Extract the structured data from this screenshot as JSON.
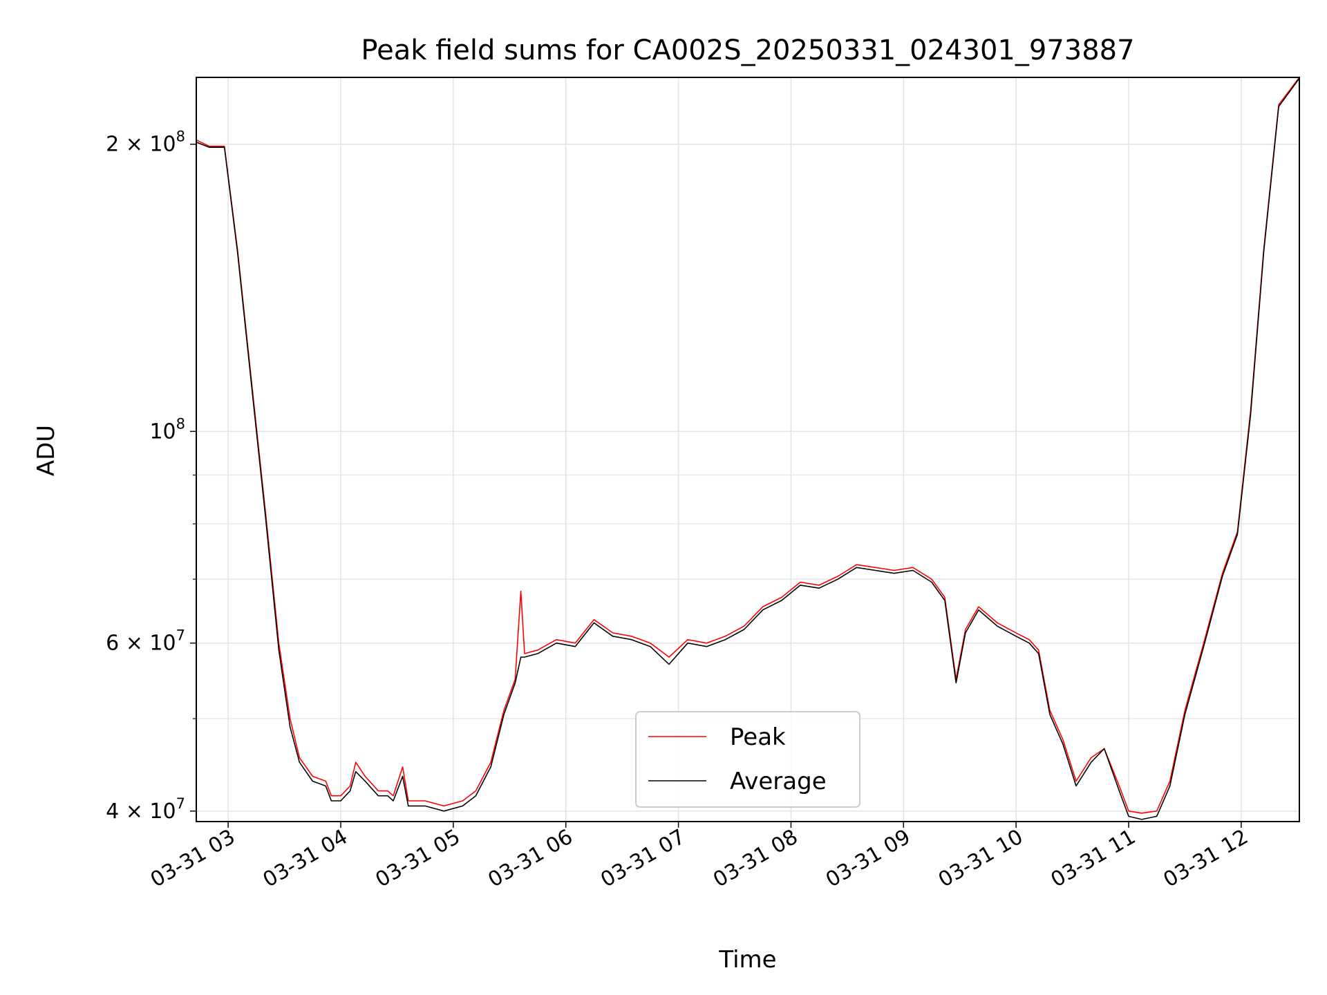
{
  "chart_data": {
    "type": "line",
    "title": "Peak field sums for CA002S_20250331_024301_973887",
    "xlabel": "Time",
    "ylabel": "ADU",
    "y_scale": "log",
    "xlim": [
      "03-31 02:43",
      "03-31 12:31"
    ],
    "ylim": [
      39000000,
      235000000
    ],
    "grid": true,
    "legend_position": "bottom-center",
    "x_ticks": [
      "03-31 03",
      "03-31 04",
      "03-31 05",
      "03-31 06",
      "03-31 07",
      "03-31 08",
      "03-31 09",
      "03-31 10",
      "03-31 11",
      "03-31 12"
    ],
    "y_major_ticks": [
      {
        "value": 40000000,
        "mantissa": "4",
        "exponent": "7"
      },
      {
        "value": 60000000,
        "mantissa": "6",
        "exponent": "7"
      },
      {
        "value": 100000000,
        "mantissa": "",
        "exponent": "8"
      },
      {
        "value": 200000000,
        "mantissa": "2",
        "exponent": "8"
      }
    ],
    "y_minor_ticks": [
      50000000,
      70000000,
      80000000,
      90000000
    ],
    "series": [
      {
        "name": "Peak",
        "color": "#ff0000",
        "points": [
          [
            "03-31 02:43",
            202000000
          ],
          [
            "03-31 02:50",
            199000000
          ],
          [
            "03-31 02:58",
            199000000
          ],
          [
            "03-31 03:05",
            155000000
          ],
          [
            "03-31 03:12",
            115000000
          ],
          [
            "03-31 03:20",
            82000000
          ],
          [
            "03-31 03:27",
            60000000
          ],
          [
            "03-31 03:33",
            50000000
          ],
          [
            "03-31 03:38",
            45500000
          ],
          [
            "03-31 03:45",
            43500000
          ],
          [
            "03-31 03:52",
            43000000
          ],
          [
            "03-31 03:55",
            41500000
          ],
          [
            "03-31 04:00",
            41500000
          ],
          [
            "03-31 04:05",
            42500000
          ],
          [
            "03-31 04:08",
            45000000
          ],
          [
            "03-31 04:13",
            43500000
          ],
          [
            "03-31 04:20",
            42000000
          ],
          [
            "03-31 04:25",
            42000000
          ],
          [
            "03-31 04:28",
            41500000
          ],
          [
            "03-31 04:33",
            44500000
          ],
          [
            "03-31 04:36",
            41000000
          ],
          [
            "03-31 04:45",
            41000000
          ],
          [
            "03-31 04:55",
            40500000
          ],
          [
            "03-31 05:05",
            41000000
          ],
          [
            "03-31 05:12",
            42000000
          ],
          [
            "03-31 05:20",
            45000000
          ],
          [
            "03-31 05:27",
            51000000
          ],
          [
            "03-31 05:33",
            55000000
          ],
          [
            "03-31 05:36",
            68000000
          ],
          [
            "03-31 05:38",
            58500000
          ],
          [
            "03-31 05:45",
            59000000
          ],
          [
            "03-31 05:55",
            60500000
          ],
          [
            "03-31 06:05",
            60000000
          ],
          [
            "03-31 06:15",
            63500000
          ],
          [
            "03-31 06:25",
            61500000
          ],
          [
            "03-31 06:35",
            61000000
          ],
          [
            "03-31 06:45",
            60000000
          ],
          [
            "03-31 06:55",
            58000000
          ],
          [
            "03-31 07:05",
            60500000
          ],
          [
            "03-31 07:15",
            60000000
          ],
          [
            "03-31 07:25",
            61000000
          ],
          [
            "03-31 07:35",
            62500000
          ],
          [
            "03-31 07:45",
            65500000
          ],
          [
            "03-31 07:55",
            67000000
          ],
          [
            "03-31 08:05",
            69500000
          ],
          [
            "03-31 08:15",
            69000000
          ],
          [
            "03-31 08:25",
            70500000
          ],
          [
            "03-31 08:35",
            72500000
          ],
          [
            "03-31 08:45",
            72000000
          ],
          [
            "03-31 08:55",
            71500000
          ],
          [
            "03-31 09:05",
            72000000
          ],
          [
            "03-31 09:15",
            70000000
          ],
          [
            "03-31 09:22",
            67000000
          ],
          [
            "03-31 09:28",
            55000000
          ],
          [
            "03-31 09:33",
            62000000
          ],
          [
            "03-31 09:40",
            65500000
          ],
          [
            "03-31 09:50",
            63000000
          ],
          [
            "03-31 10:00",
            61500000
          ],
          [
            "03-31 10:07",
            60500000
          ],
          [
            "03-31 10:12",
            59000000
          ],
          [
            "03-31 10:18",
            51000000
          ],
          [
            "03-31 10:25",
            47500000
          ],
          [
            "03-31 10:32",
            43000000
          ],
          [
            "03-31 10:40",
            45500000
          ],
          [
            "03-31 10:47",
            46500000
          ],
          [
            "03-31 10:55",
            42500000
          ],
          [
            "03-31 11:00",
            40000000
          ],
          [
            "03-31 11:07",
            39800000
          ],
          [
            "03-31 11:15",
            40000000
          ],
          [
            "03-31 11:22",
            43000000
          ],
          [
            "03-31 11:30",
            51000000
          ],
          [
            "03-31 11:40",
            60000000
          ],
          [
            "03-31 11:50",
            71000000
          ],
          [
            "03-31 11:58",
            78500000
          ],
          [
            "03-31 12:05",
            105000000
          ],
          [
            "03-31 12:12",
            155000000
          ],
          [
            "03-31 12:20",
            220000000
          ],
          [
            "03-31 12:31",
            235000000
          ]
        ]
      },
      {
        "name": "Average",
        "color": "#000000",
        "points": [
          [
            "03-31 02:43",
            201000000
          ],
          [
            "03-31 02:50",
            198500000
          ],
          [
            "03-31 02:58",
            198500000
          ],
          [
            "03-31 03:05",
            154000000
          ],
          [
            "03-31 03:12",
            114000000
          ],
          [
            "03-31 03:20",
            81000000
          ],
          [
            "03-31 03:27",
            59000000
          ],
          [
            "03-31 03:33",
            49000000
          ],
          [
            "03-31 03:38",
            45000000
          ],
          [
            "03-31 03:45",
            43000000
          ],
          [
            "03-31 03:52",
            42500000
          ],
          [
            "03-31 03:55",
            41000000
          ],
          [
            "03-31 04:00",
            41000000
          ],
          [
            "03-31 04:05",
            42000000
          ],
          [
            "03-31 04:08",
            44000000
          ],
          [
            "03-31 04:13",
            43000000
          ],
          [
            "03-31 04:20",
            41500000
          ],
          [
            "03-31 04:25",
            41500000
          ],
          [
            "03-31 04:28",
            41000000
          ],
          [
            "03-31 04:33",
            43500000
          ],
          [
            "03-31 04:36",
            40500000
          ],
          [
            "03-31 04:45",
            40500000
          ],
          [
            "03-31 04:55",
            40000000
          ],
          [
            "03-31 05:05",
            40500000
          ],
          [
            "03-31 05:12",
            41500000
          ],
          [
            "03-31 05:20",
            44500000
          ],
          [
            "03-31 05:27",
            50500000
          ],
          [
            "03-31 05:33",
            54500000
          ],
          [
            "03-31 05:36",
            58000000
          ],
          [
            "03-31 05:38",
            58000000
          ],
          [
            "03-31 05:45",
            58500000
          ],
          [
            "03-31 05:55",
            60000000
          ],
          [
            "03-31 06:05",
            59500000
          ],
          [
            "03-31 06:15",
            63000000
          ],
          [
            "03-31 06:25",
            61000000
          ],
          [
            "03-31 06:35",
            60500000
          ],
          [
            "03-31 06:45",
            59500000
          ],
          [
            "03-31 06:55",
            57000000
          ],
          [
            "03-31 07:05",
            60000000
          ],
          [
            "03-31 07:15",
            59500000
          ],
          [
            "03-31 07:25",
            60500000
          ],
          [
            "03-31 07:35",
            62000000
          ],
          [
            "03-31 07:45",
            65000000
          ],
          [
            "03-31 07:55",
            66500000
          ],
          [
            "03-31 08:05",
            69000000
          ],
          [
            "03-31 08:15",
            68500000
          ],
          [
            "03-31 08:25",
            70000000
          ],
          [
            "03-31 08:35",
            72000000
          ],
          [
            "03-31 08:45",
            71500000
          ],
          [
            "03-31 08:55",
            71000000
          ],
          [
            "03-31 09:05",
            71500000
          ],
          [
            "03-31 09:15",
            69500000
          ],
          [
            "03-31 09:22",
            66500000
          ],
          [
            "03-31 09:28",
            54500000
          ],
          [
            "03-31 09:33",
            61500000
          ],
          [
            "03-31 09:40",
            65000000
          ],
          [
            "03-31 09:50",
            62500000
          ],
          [
            "03-31 10:00",
            61000000
          ],
          [
            "03-31 10:07",
            60000000
          ],
          [
            "03-31 10:12",
            58500000
          ],
          [
            "03-31 10:18",
            50500000
          ],
          [
            "03-31 10:25",
            47000000
          ],
          [
            "03-31 10:32",
            42500000
          ],
          [
            "03-31 10:40",
            45000000
          ],
          [
            "03-31 10:47",
            46500000
          ],
          [
            "03-31 10:55",
            42000000
          ],
          [
            "03-31 11:00",
            39500000
          ],
          [
            "03-31 11:07",
            39200000
          ],
          [
            "03-31 11:15",
            39500000
          ],
          [
            "03-31 11:22",
            42500000
          ],
          [
            "03-31 11:30",
            50500000
          ],
          [
            "03-31 11:40",
            59500000
          ],
          [
            "03-31 11:50",
            70500000
          ],
          [
            "03-31 11:58",
            78000000
          ],
          [
            "03-31 12:05",
            104000000
          ],
          [
            "03-31 12:12",
            154000000
          ],
          [
            "03-31 12:20",
            219000000
          ],
          [
            "03-31 12:31",
            234500000
          ]
        ]
      }
    ]
  }
}
